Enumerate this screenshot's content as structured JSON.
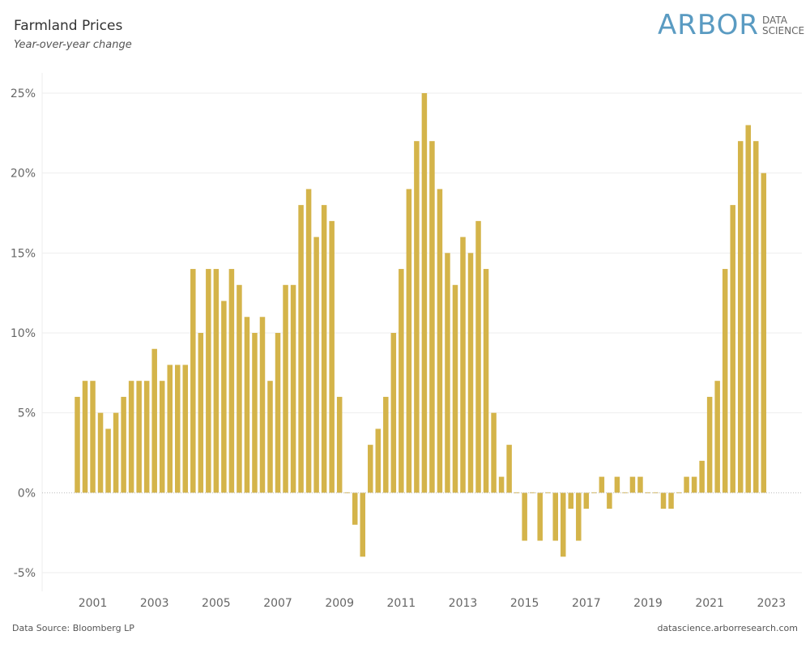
{
  "header": {
    "title": "Farmland Prices",
    "subtitle": "Year-over-year change"
  },
  "logo": {
    "main": "ARBOR",
    "line1": "DATA",
    "line2": "SCIENCE"
  },
  "footer": {
    "source": "Data Source: Bloomberg LP",
    "url": "datascience.arborresearch.com"
  },
  "colors": {
    "bar": "#d4b44a",
    "grid": "#eeeeee",
    "logo": "#5a9bc2"
  },
  "chart_data": {
    "type": "bar",
    "title": "Farmland Prices",
    "subtitle": "Year-over-year change",
    "xlabel": "",
    "ylabel": "",
    "ylim": [
      -5,
      25
    ],
    "grid": true,
    "y_ticks": [
      -5,
      0,
      5,
      10,
      15,
      20,
      25
    ],
    "y_tick_labels": [
      "-5%",
      "0%",
      "5%",
      "10%",
      "15%",
      "20%",
      "25%"
    ],
    "x_tick_labels": [
      "2001",
      "2003",
      "2005",
      "2007",
      "2009",
      "2011",
      "2013",
      "2015",
      "2017",
      "2019",
      "2021",
      "2023"
    ],
    "categories": [
      "2000Q3",
      "2000Q4",
      "2001Q1",
      "2001Q2",
      "2001Q3",
      "2001Q4",
      "2002Q1",
      "2002Q2",
      "2002Q3",
      "2002Q4",
      "2003Q1",
      "2003Q2",
      "2003Q3",
      "2003Q4",
      "2004Q1",
      "2004Q2",
      "2004Q3",
      "2004Q4",
      "2005Q1",
      "2005Q2",
      "2005Q3",
      "2005Q4",
      "2006Q1",
      "2006Q2",
      "2006Q3",
      "2006Q4",
      "2007Q1",
      "2007Q2",
      "2007Q3",
      "2007Q4",
      "2008Q1",
      "2008Q2",
      "2008Q3",
      "2008Q4",
      "2009Q1",
      "2009Q2",
      "2009Q3",
      "2009Q4",
      "2010Q1",
      "2010Q2",
      "2010Q3",
      "2010Q4",
      "2011Q1",
      "2011Q2",
      "2011Q3",
      "2011Q4",
      "2012Q1",
      "2012Q2",
      "2012Q3",
      "2012Q4",
      "2013Q1",
      "2013Q2",
      "2013Q3",
      "2013Q4",
      "2014Q1",
      "2014Q2",
      "2014Q3",
      "2014Q4",
      "2015Q1",
      "2015Q2",
      "2015Q3",
      "2015Q4",
      "2016Q1",
      "2016Q2",
      "2016Q3",
      "2016Q4",
      "2017Q1",
      "2017Q2",
      "2017Q3",
      "2017Q4",
      "2018Q1",
      "2018Q2",
      "2018Q3",
      "2018Q4",
      "2019Q1",
      "2019Q2",
      "2019Q3",
      "2019Q4",
      "2020Q1",
      "2020Q2",
      "2020Q3",
      "2020Q4",
      "2021Q1",
      "2021Q2",
      "2021Q3",
      "2021Q4",
      "2022Q1",
      "2022Q2",
      "2022Q3",
      "2022Q4"
    ],
    "values": [
      6,
      7,
      7,
      5,
      4,
      5,
      6,
      7,
      7,
      7,
      9,
      7,
      8,
      8,
      8,
      14,
      10,
      14,
      14,
      12,
      14,
      13,
      11,
      10,
      11,
      7,
      10,
      13,
      13,
      18,
      19,
      16,
      18,
      17,
      6,
      0,
      -2,
      -4,
      3,
      4,
      6,
      10,
      14,
      19,
      22,
      25,
      22,
      19,
      15,
      13,
      16,
      15,
      17,
      14,
      5,
      1,
      3,
      0,
      -3,
      0,
      -3,
      0,
      -3,
      -4,
      -1,
      -3,
      -1,
      0,
      1,
      -1,
      1,
      0,
      1,
      1,
      0,
      0,
      -1,
      -1,
      0,
      1,
      1,
      2,
      6,
      7,
      14,
      18,
      22,
      23,
      22,
      20
    ]
  }
}
